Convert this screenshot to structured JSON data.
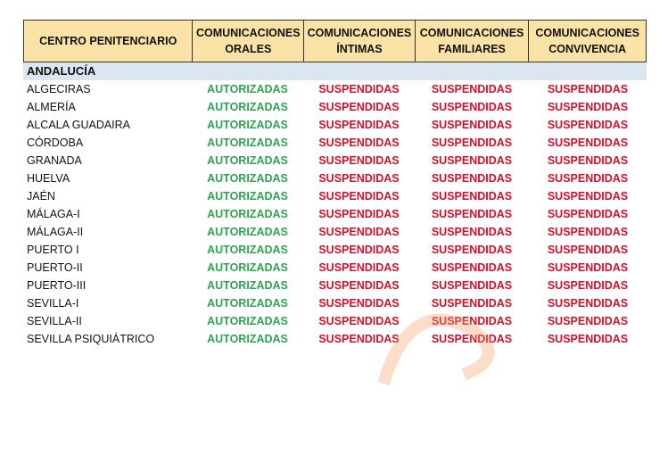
{
  "colors": {
    "header_bg": "#fbe2a6",
    "region_bg": "#dce6f1",
    "authorized": "#2ea44f",
    "suspended": "#d0112b"
  },
  "headers": [
    "CENTRO PENITENCIARIO",
    "COMUNICACIONES ORALES",
    "COMUNICACIONES ÍNTIMAS",
    "COMUNICACIONES FAMILIARES",
    "COMUNICACIONES CONVIVENCIA"
  ],
  "region": "ANDALUCÍA",
  "rows": [
    {
      "name": "ALGECIRAS",
      "values": [
        "AUTORIZADAS",
        "SUSPENDIDAS",
        "SUSPENDIDAS",
        "SUSPENDIDAS"
      ]
    },
    {
      "name": "ALMERÍA",
      "values": [
        "AUTORIZADAS",
        "SUSPENDIDAS",
        "SUSPENDIDAS",
        "SUSPENDIDAS"
      ]
    },
    {
      "name": "ALCALA GUADAIRA",
      "values": [
        "AUTORIZADAS",
        "SUSPENDIDAS",
        "SUSPENDIDAS",
        "SUSPENDIDAS"
      ]
    },
    {
      "name": "CÓRDOBA",
      "values": [
        "AUTORIZADAS",
        "SUSPENDIDAS",
        "SUSPENDIDAS",
        "SUSPENDIDAS"
      ]
    },
    {
      "name": "GRANADA",
      "values": [
        "AUTORIZADAS",
        "SUSPENDIDAS",
        "SUSPENDIDAS",
        "SUSPENDIDAS"
      ]
    },
    {
      "name": "HUELVA",
      "values": [
        "AUTORIZADAS",
        "SUSPENDIDAS",
        "SUSPENDIDAS",
        "SUSPENDIDAS"
      ]
    },
    {
      "name": "JAÉN",
      "values": [
        "AUTORIZADAS",
        "SUSPENDIDAS",
        "SUSPENDIDAS",
        "SUSPENDIDAS"
      ]
    },
    {
      "name": "MÁLAGA-I",
      "values": [
        "AUTORIZADAS",
        "SUSPENDIDAS",
        "SUSPENDIDAS",
        "SUSPENDIDAS"
      ]
    },
    {
      "name": "MÁLAGA-II",
      "values": [
        "AUTORIZADAS",
        "SUSPENDIDAS",
        "SUSPENDIDAS",
        "SUSPENDIDAS"
      ]
    },
    {
      "name": "PUERTO I",
      "values": [
        "AUTORIZADAS",
        "SUSPENDIDAS",
        "SUSPENDIDAS",
        "SUSPENDIDAS"
      ]
    },
    {
      "name": "PUERTO-II",
      "values": [
        "AUTORIZADAS",
        "SUSPENDIDAS",
        "SUSPENDIDAS",
        "SUSPENDIDAS"
      ]
    },
    {
      "name": "PUERTO-III",
      "values": [
        "AUTORIZADAS",
        "SUSPENDIDAS",
        "SUSPENDIDAS",
        "SUSPENDIDAS"
      ]
    },
    {
      "name": "SEVILLA-I",
      "values": [
        "AUTORIZADAS",
        "SUSPENDIDAS",
        "SUSPENDIDAS",
        "SUSPENDIDAS"
      ]
    },
    {
      "name": "SEVILLA-II",
      "values": [
        "AUTORIZADAS",
        "SUSPENDIDAS",
        "SUSPENDIDAS",
        "SUSPENDIDAS"
      ]
    },
    {
      "name": "SEVILLA PSIQUIÁTRICO",
      "values": [
        "AUTORIZADAS",
        "SUSPENDIDAS",
        "SUSPENDIDAS",
        "SUSPENDIDAS"
      ]
    }
  ]
}
